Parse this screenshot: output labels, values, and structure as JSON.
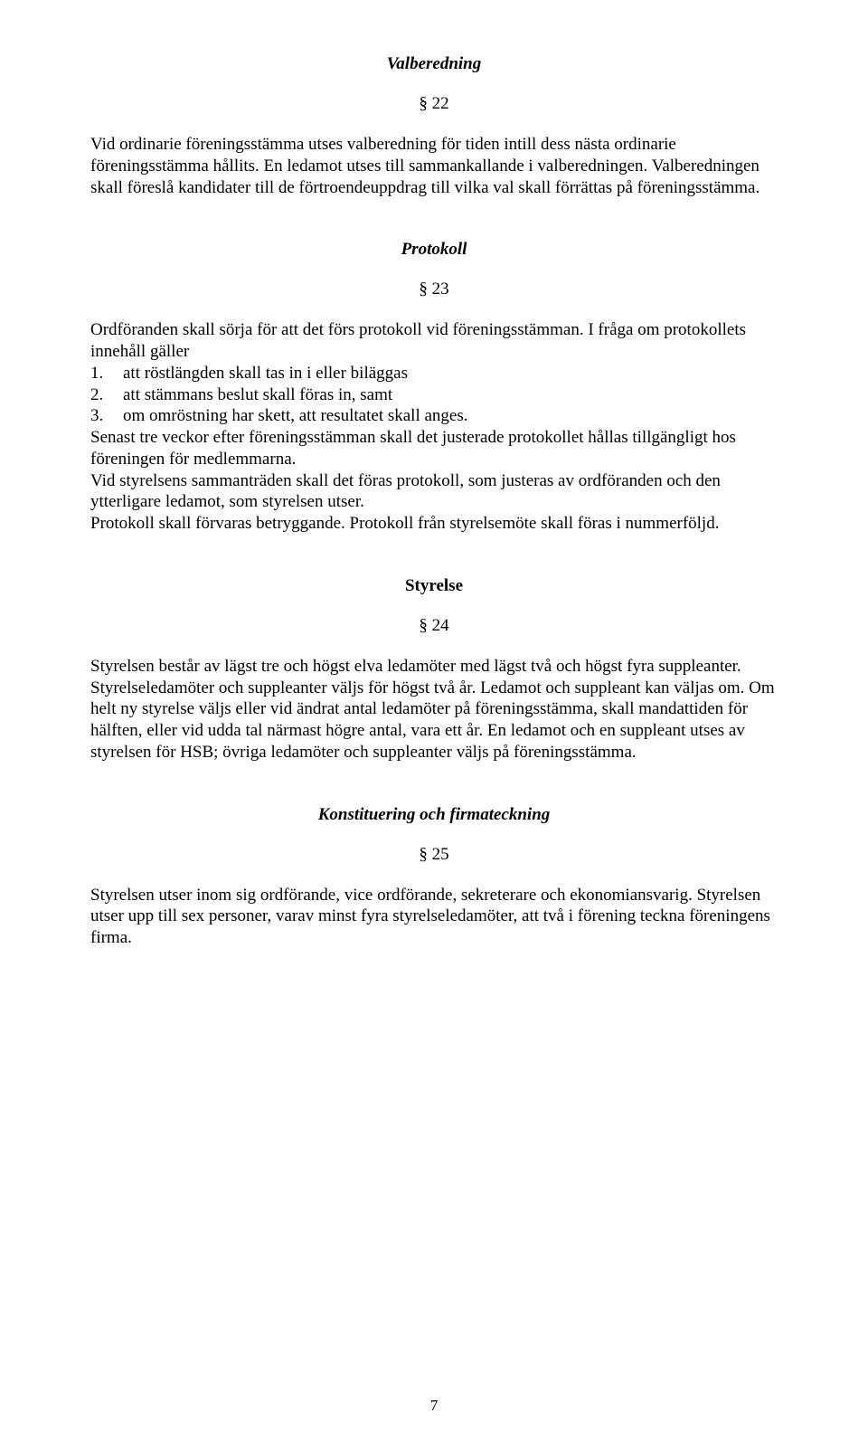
{
  "sections": {
    "valberedning": {
      "title": "Valberedning",
      "para_num": "§ 22",
      "text": "Vid ordinarie föreningsstämma utses valberedning för tiden intill dess nästa ordinarie föreningsstämma hållits. En ledamot utses till sammankallande i valberedningen. Valberedningen skall föreslå kandidater till de förtroendeuppdrag till vilka val skall förrättas på föreningsstämma."
    },
    "protokoll": {
      "title": "Protokoll",
      "para_num": "§ 23",
      "intro": "Ordföranden skall sörja för att det förs protokoll vid föreningsstämman. I fråga om protokollets innehåll gäller",
      "items": [
        {
          "num": "1.",
          "text": "att röstlängden skall tas in i eller biläggas"
        },
        {
          "num": "2.",
          "text": "att stämmans beslut skall föras in, samt"
        },
        {
          "num": "3.",
          "text": "om omröstning har skett, att resultatet skall anges."
        }
      ],
      "after": "Senast tre veckor efter föreningsstämman skall det justerade protokollet hållas tillgängligt hos föreningen för medlemmarna.\nVid styrelsens sammanträden skall det föras protokoll, som justeras av ordföranden och den ytterligare ledamot, som styrelsen utser.\nProtokoll skall förvaras betryggande. Protokoll från styrelsemöte skall föras i nummerföljd."
    },
    "styrelse": {
      "title": "Styrelse",
      "para_num": "§ 24",
      "text": "Styrelsen består av lägst tre och högst elva ledamöter med lägst två och högst fyra suppleanter. Styrelseledamöter och suppleanter väljs för högst två år. Ledamot och suppleant kan väljas om. Om helt ny styrelse väljs eller vid ändrat antal ledamöter på föreningsstämma, skall mandattiden för hälften, eller vid udda tal närmast högre antal, vara ett år. En ledamot och en suppleant utses av styrelsen för HSB; övriga ledamöter och suppleanter väljs på föreningsstämma."
    },
    "konstituering": {
      "title": "Konstituering och firmateckning",
      "para_num": "§ 25",
      "text": "Styrelsen utser inom sig ordförande, vice ordförande, sekreterare och ekonomiansvarig. Styrelsen utser upp till sex personer, varav minst fyra styrelseledamöter, att två i förening teckna föreningens firma."
    }
  },
  "page_number": "7"
}
